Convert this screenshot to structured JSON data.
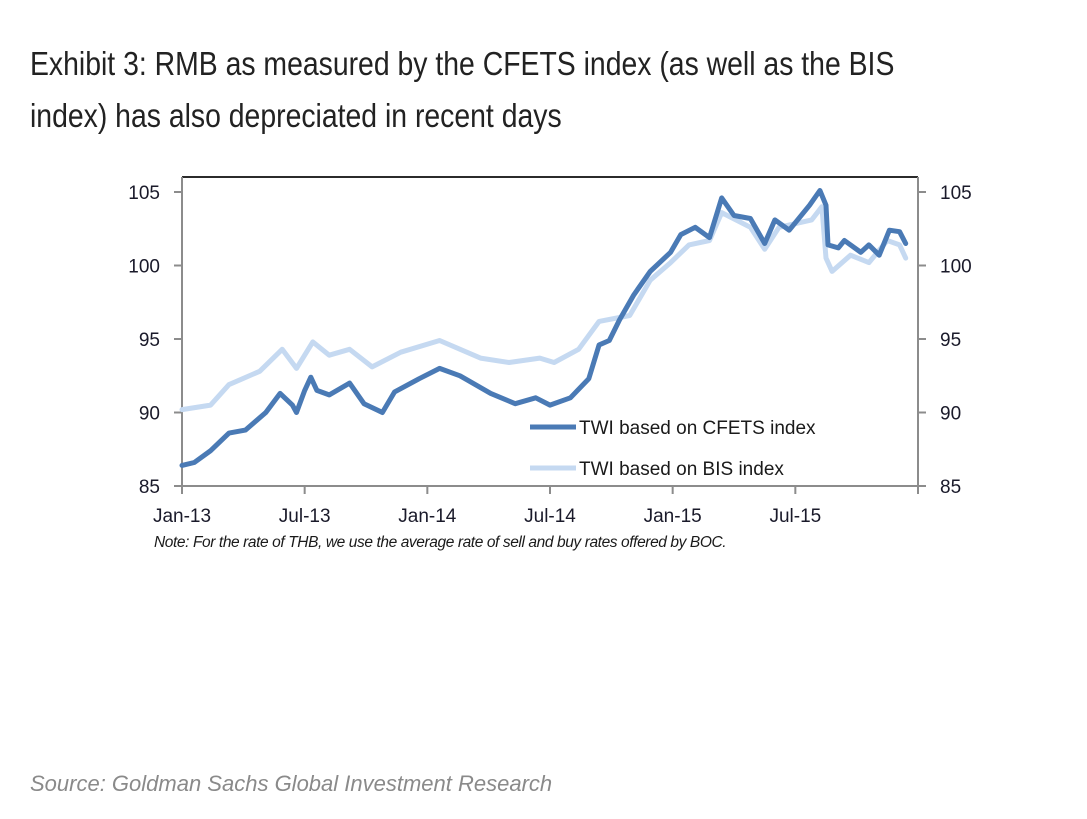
{
  "title_lines": [
    "Exhibit 3: RMB as measured by the CFETS index (as well as the BIS",
    "index) has also depreciated in recent days"
  ],
  "note": "Note: For the rate of THB, we use the average rate of sell and buy rates offered by BOC.",
  "source": "Source: Goldman Sachs Global Investment Research",
  "chart_data": {
    "type": "line",
    "title": "Exhibit 3: RMB as measured by the CFETS index (as well as the BIS index) has also depreciated in recent days",
    "xlabel": "",
    "ylabel": "",
    "x_unit": "months since Jan-2013",
    "xlim": [
      0,
      36
    ],
    "ylim": [
      85,
      105
    ],
    "y_ticks": [
      85,
      90,
      95,
      100,
      105
    ],
    "y_tick_labels": [
      "85",
      "90",
      "95",
      "100",
      "105"
    ],
    "x_ticks": [
      0,
      6,
      12,
      18,
      24,
      30
    ],
    "x_tick_labels": [
      "Jan-13",
      "Jul-13",
      "Jan-14",
      "Jul-14",
      "Jan-15",
      "Jul-15"
    ],
    "x_extra_ticks": [
      36
    ],
    "secondary_y_axis": "mirror",
    "grid": false,
    "legend_position": "bottom-right",
    "series": [
      {
        "name": "TWI based on CFETS index",
        "color": "#4a7ab5",
        "points": [
          [
            0.0,
            86.4
          ],
          [
            0.6,
            86.6
          ],
          [
            1.4,
            87.4
          ],
          [
            2.3,
            88.6
          ],
          [
            3.1,
            88.8
          ],
          [
            4.1,
            90.0
          ],
          [
            4.8,
            91.3
          ],
          [
            5.4,
            90.5
          ],
          [
            5.6,
            90.0
          ],
          [
            6.0,
            91.5
          ],
          [
            6.3,
            92.4
          ],
          [
            6.6,
            91.5
          ],
          [
            7.2,
            91.2
          ],
          [
            8.2,
            92.0
          ],
          [
            8.9,
            90.6
          ],
          [
            9.8,
            90.0
          ],
          [
            10.4,
            91.4
          ],
          [
            11.6,
            92.3
          ],
          [
            12.6,
            93.0
          ],
          [
            13.6,
            92.5
          ],
          [
            15.1,
            91.3
          ],
          [
            16.3,
            90.6
          ],
          [
            17.3,
            91.0
          ],
          [
            18.0,
            90.5
          ],
          [
            19.0,
            91.0
          ],
          [
            19.9,
            92.3
          ],
          [
            20.4,
            94.6
          ],
          [
            20.9,
            94.9
          ],
          [
            21.4,
            96.3
          ],
          [
            22.1,
            98.0
          ],
          [
            22.9,
            99.6
          ],
          [
            23.9,
            100.9
          ],
          [
            24.4,
            102.1
          ],
          [
            25.1,
            102.6
          ],
          [
            25.8,
            101.9
          ],
          [
            26.4,
            104.6
          ],
          [
            27.0,
            103.4
          ],
          [
            27.8,
            103.2
          ],
          [
            28.5,
            101.5
          ],
          [
            29.0,
            103.1
          ],
          [
            29.7,
            102.4
          ],
          [
            30.7,
            104.1
          ],
          [
            31.2,
            105.1
          ],
          [
            31.5,
            104.1
          ],
          [
            31.6,
            101.4
          ],
          [
            32.1,
            101.2
          ],
          [
            32.4,
            101.7
          ],
          [
            33.2,
            100.9
          ],
          [
            33.6,
            101.4
          ],
          [
            34.1,
            100.7
          ],
          [
            34.6,
            102.4
          ],
          [
            35.1,
            102.3
          ],
          [
            35.4,
            101.5
          ]
        ]
      },
      {
        "name": "TWI based on BIS index",
        "color": "#c5d9f1",
        "points": [
          [
            0.0,
            90.2
          ],
          [
            1.4,
            90.5
          ],
          [
            2.3,
            91.9
          ],
          [
            3.8,
            92.8
          ],
          [
            4.9,
            94.3
          ],
          [
            5.6,
            93.0
          ],
          [
            6.4,
            94.8
          ],
          [
            7.2,
            93.9
          ],
          [
            8.2,
            94.3
          ],
          [
            9.3,
            93.1
          ],
          [
            10.7,
            94.1
          ],
          [
            12.6,
            94.9
          ],
          [
            14.6,
            93.7
          ],
          [
            16.0,
            93.4
          ],
          [
            17.5,
            93.7
          ],
          [
            18.2,
            93.4
          ],
          [
            19.4,
            94.3
          ],
          [
            20.4,
            96.2
          ],
          [
            21.9,
            96.6
          ],
          [
            22.9,
            99.0
          ],
          [
            23.9,
            100.2
          ],
          [
            24.8,
            101.4
          ],
          [
            25.8,
            101.7
          ],
          [
            26.4,
            103.6
          ],
          [
            27.8,
            102.6
          ],
          [
            28.5,
            101.1
          ],
          [
            29.2,
            102.6
          ],
          [
            30.8,
            103.1
          ],
          [
            31.3,
            104.0
          ],
          [
            31.5,
            100.5
          ],
          [
            31.8,
            99.6
          ],
          [
            32.7,
            100.7
          ],
          [
            33.6,
            100.2
          ],
          [
            34.5,
            101.7
          ],
          [
            35.1,
            101.4
          ],
          [
            35.4,
            100.5
          ]
        ]
      }
    ]
  }
}
